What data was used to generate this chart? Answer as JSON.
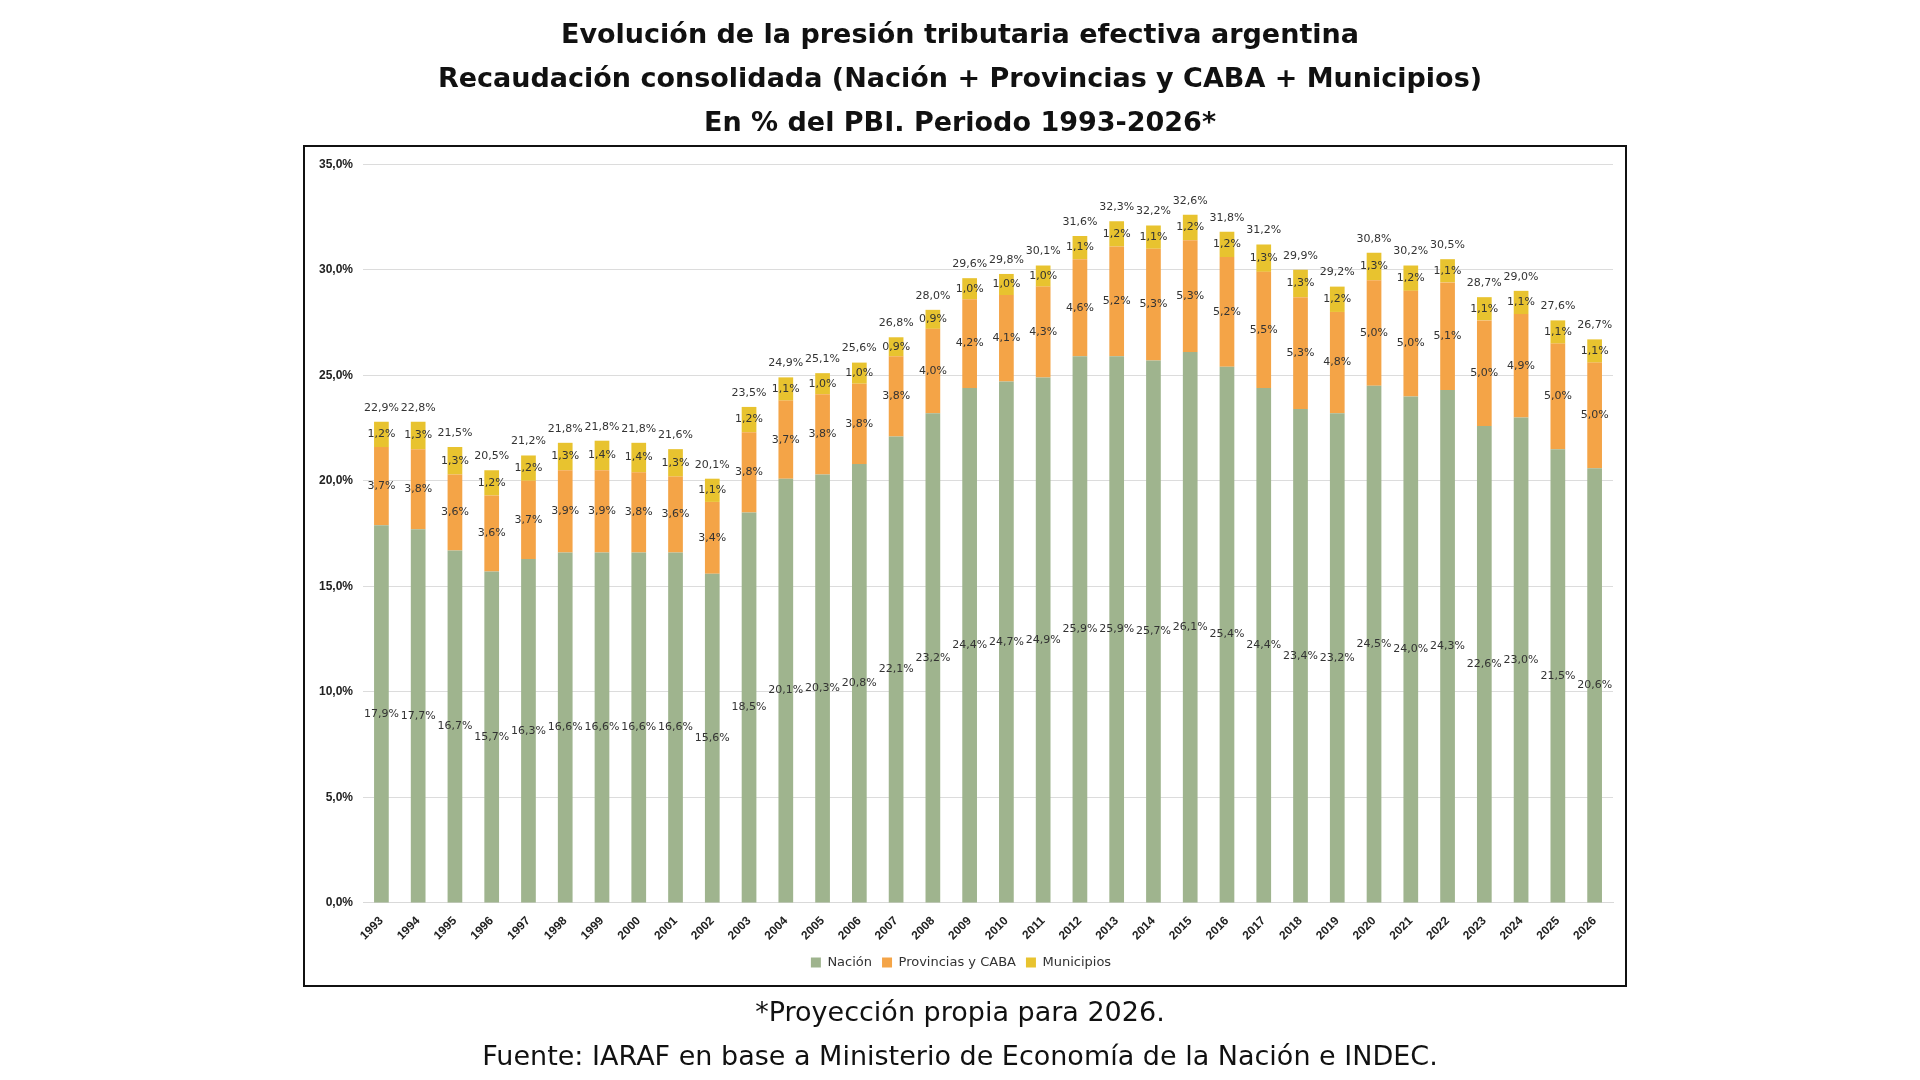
{
  "chart_data": {
    "type": "bar",
    "stacked": true,
    "title": "Evolución de la presión tributaria efectiva argentina\nRecaudación consolidada (Nación + Provincias y CABA + Municipios)\nEn % del PBI. Periodo 1993-2026*",
    "categories": [
      "1993",
      "1994",
      "1995",
      "1996",
      "1997",
      "1998",
      "1999",
      "2000",
      "2001",
      "2002",
      "2003",
      "2004",
      "2005",
      "2006",
      "2007",
      "2008",
      "2009",
      "2010",
      "2011",
      "2012",
      "2013",
      "2014",
      "2015",
      "2016",
      "2017",
      "2018",
      "2019",
      "2020",
      "2021",
      "2022",
      "2023",
      "2024",
      "2025",
      "2026"
    ],
    "series": [
      {
        "name": "Nación",
        "color": "#9fb48e",
        "values": [
          17.9,
          17.7,
          16.7,
          15.7,
          16.3,
          16.6,
          16.6,
          16.6,
          16.6,
          15.6,
          18.5,
          20.1,
          20.3,
          20.8,
          22.1,
          23.2,
          24.4,
          24.7,
          24.9,
          25.9,
          25.9,
          25.7,
          26.1,
          25.4,
          24.4,
          23.4,
          23.2,
          24.5,
          24.0,
          24.3,
          22.6,
          23.0,
          21.5,
          20.6
        ],
        "value_labels": [
          "17,9%",
          "17,7%",
          "16,7%",
          "15,7%",
          "16,3%",
          "16,6%",
          "16,6%",
          "16,6%",
          "16,6%",
          "15,6%",
          "18,5%",
          "20,1%",
          "20,3%",
          "20,8%",
          "22,1%",
          "23,2%",
          "24,4%",
          "24,7%",
          "24,9%",
          "25,9%",
          "25,9%",
          "25,7%",
          "26,1%",
          "25,4%",
          "24,4%",
          "23,4%",
          "23,2%",
          "24,5%",
          "24,0%",
          "24,3%",
          "22,6%",
          "23,0%",
          "21,5%",
          "20,6%"
        ]
      },
      {
        "name": "Provincias y CABA",
        "color": "#f4a447",
        "values": [
          3.7,
          3.8,
          3.6,
          3.6,
          3.7,
          3.9,
          3.9,
          3.8,
          3.6,
          3.4,
          3.8,
          3.7,
          3.8,
          3.8,
          3.8,
          4.0,
          4.2,
          4.1,
          4.3,
          4.6,
          5.2,
          5.3,
          5.3,
          5.2,
          5.5,
          5.3,
          4.8,
          5.0,
          5.0,
          5.1,
          5.0,
          4.9,
          5.0,
          5.0
        ],
        "value_labels": [
          "3,7%",
          "3,8%",
          "3,6%",
          "3,6%",
          "3,7%",
          "3,9%",
          "3,9%",
          "3,8%",
          "3,6%",
          "3,4%",
          "3,8%",
          "3,7%",
          "3,8%",
          "3,8%",
          "3,8%",
          "4,0%",
          "4,2%",
          "4,1%",
          "4,3%",
          "4,6%",
          "5,2%",
          "5,3%",
          "5,3%",
          "5,2%",
          "5,5%",
          "5,3%",
          "4,8%",
          "5,0%",
          "5,0%",
          "5,1%",
          "5,0%",
          "4,9%",
          "5,0%",
          "5,0%"
        ]
      },
      {
        "name": "Municipios",
        "color": "#e8c32f",
        "values": [
          1.2,
          1.3,
          1.3,
          1.2,
          1.2,
          1.3,
          1.4,
          1.4,
          1.3,
          1.1,
          1.2,
          1.1,
          1.0,
          1.0,
          0.9,
          0.9,
          1.0,
          1.0,
          1.0,
          1.1,
          1.2,
          1.1,
          1.2,
          1.2,
          1.3,
          1.3,
          1.2,
          1.3,
          1.2,
          1.1,
          1.1,
          1.1,
          1.1,
          1.1
        ],
        "value_labels": [
          "1,2%",
          "1,3%",
          "1,3%",
          "1,2%",
          "1,2%",
          "1,3%",
          "1,4%",
          "1,4%",
          "1,3%",
          "1,1%",
          "1,2%",
          "1,1%",
          "1,0%",
          "1,0%",
          "0,9%",
          "0,9%",
          "1,0%",
          "1,0%",
          "1,0%",
          "1,1%",
          "1,2%",
          "1,1%",
          "1,2%",
          "1,2%",
          "1,3%",
          "1,3%",
          "1,2%",
          "1,3%",
          "1,2%",
          "1,1%",
          "1,1%",
          "1,1%",
          "1,1%",
          "1,1%"
        ]
      }
    ],
    "totals": [
      "22,9%",
      "22,8%",
      "21,5%",
      "20,5%",
      "21,2%",
      "21,8%",
      "21,8%",
      "21,8%",
      "21,6%",
      "20,1%",
      "23,5%",
      "24,9%",
      "25,1%",
      "25,6%",
      "26,8%",
      "28,0%",
      "29,6%",
      "29,8%",
      "30,1%",
      "31,6%",
      "32,3%",
      "32,2%",
      "32,6%",
      "31,8%",
      "31,2%",
      "29,9%",
      "29,2%",
      "30,8%",
      "30,2%",
      "30,5%",
      "28,7%",
      "29,0%",
      "27,6%",
      "26,7%"
    ],
    "ylim": [
      0,
      35
    ],
    "yticks": [
      {
        "value": 0,
        "label": "0,0%"
      },
      {
        "value": 5,
        "label": "5,0%"
      },
      {
        "value": 10,
        "label": "10,0%"
      },
      {
        "value": 15,
        "label": "15,0%"
      },
      {
        "value": 20,
        "label": "20,0%"
      },
      {
        "value": 25,
        "label": "25,0%"
      },
      {
        "value": 30,
        "label": "30,0%"
      },
      {
        "value": 35,
        "label": "35,0%"
      }
    ],
    "grid": "y",
    "legend": "bottom",
    "annotations": [
      "*Proyección propia para 2026.",
      "Fuente: IARAF en base a Ministerio de Economía de la Nación e INDEC."
    ]
  }
}
